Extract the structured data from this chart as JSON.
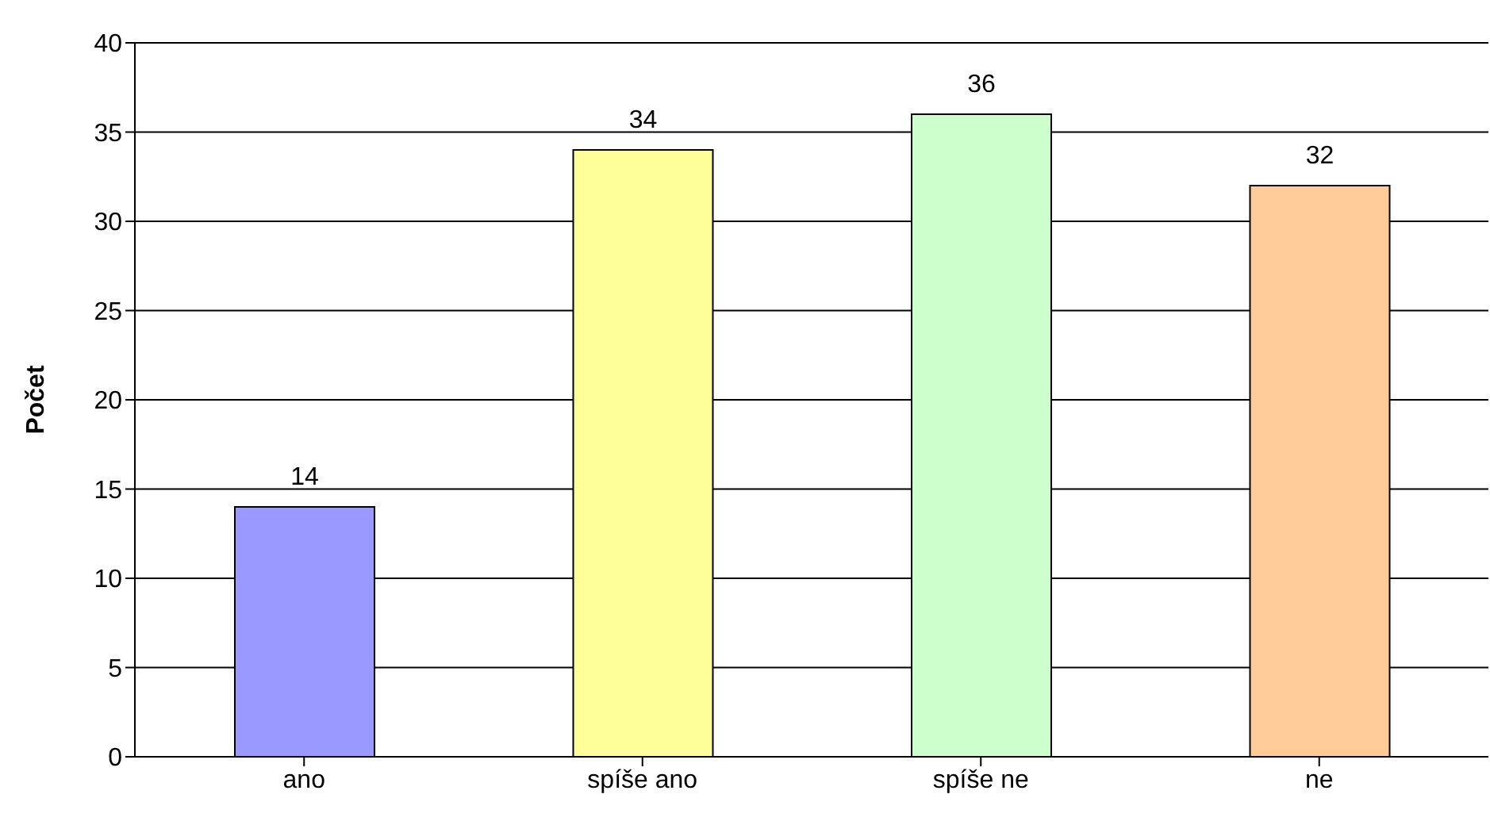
{
  "chart_data": {
    "type": "bar",
    "ylabel": "Počet",
    "categories": [
      "ano",
      "spíše ano",
      "spíše ne",
      "ne"
    ],
    "values": [
      14,
      34,
      36,
      32
    ],
    "colors": [
      "#9999ff",
      "#ffff99",
      "#ccffcc",
      "#ffcc99"
    ],
    "ylim": [
      0,
      40
    ],
    "yticks": [
      0,
      5,
      10,
      15,
      20,
      25,
      30,
      35,
      40
    ],
    "grid": "y",
    "data_labels": true
  }
}
